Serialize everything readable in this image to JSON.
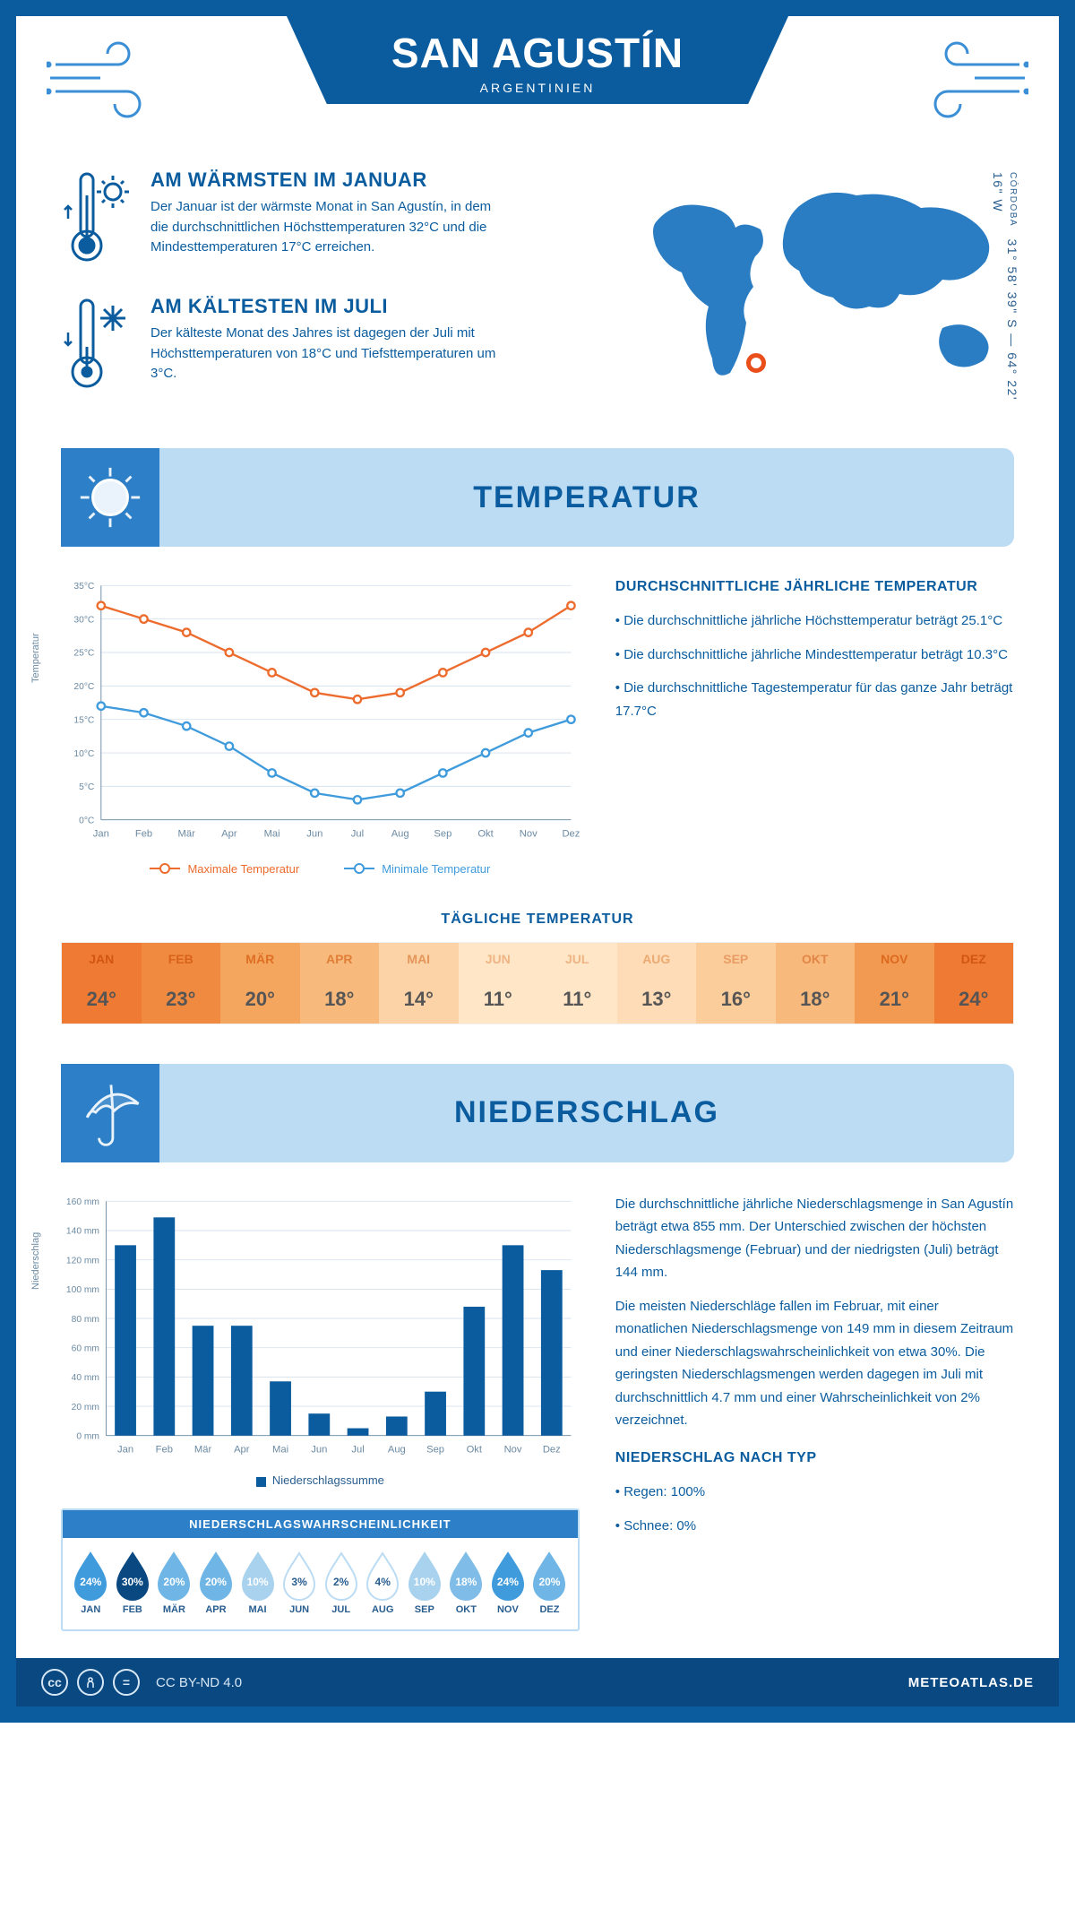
{
  "header": {
    "city": "SAN AGUSTÍN",
    "country": "ARGENTINIEN"
  },
  "location": {
    "region": "CÓRDOBA",
    "coordinates": "31° 58' 39\" S — 64° 22' 16\" W",
    "marker_color": "#e94e1b",
    "map_color": "#2b7dc3"
  },
  "facts": {
    "warm": {
      "title": "AM WÄRMSTEN IM JANUAR",
      "text": "Der Januar ist der wärmste Monat in San Agustín, in dem die durchschnittlichen Höchsttemperaturen 32°C und die Mindesttemperaturen 17°C erreichen."
    },
    "cold": {
      "title": "AM KÄLTESTEN IM JULI",
      "text": "Der kälteste Monat des Jahres ist dagegen der Juli mit Höchsttemperaturen von 18°C und Tiefsttemperaturen um 3°C."
    }
  },
  "months": [
    "Jan",
    "Feb",
    "Mär",
    "Apr",
    "Mai",
    "Jun",
    "Jul",
    "Aug",
    "Sep",
    "Okt",
    "Nov",
    "Dez"
  ],
  "months_uc": [
    "JAN",
    "FEB",
    "MÄR",
    "APR",
    "MAI",
    "JUN",
    "JUL",
    "AUG",
    "SEP",
    "OKT",
    "NOV",
    "DEZ"
  ],
  "temperature": {
    "section_title": "TEMPERATUR",
    "chart": {
      "type": "line",
      "ylabel": "Temperatur",
      "ylim": [
        0,
        35
      ],
      "ytick_step": 5,
      "ysuffix": "°C",
      "grid_color": "#d7e3ed",
      "axis_color": "#6b8aa3",
      "series": [
        {
          "name": "Maximale Temperatur",
          "color": "#ec6b2d",
          "values": [
            32,
            30,
            28,
            25,
            22,
            19,
            18,
            19,
            22,
            25,
            28,
            32
          ]
        },
        {
          "name": "Minimale Temperatur",
          "color": "#3f9bdc",
          "values": [
            17,
            16,
            14,
            11,
            7,
            4,
            3,
            4,
            7,
            10,
            13,
            15
          ]
        }
      ]
    },
    "annual": {
      "title": "DURCHSCHNITTLICHE JÄHRLICHE TEMPERATUR",
      "bullets": [
        "• Die durchschnittliche jährliche Höchsttemperatur beträgt 25.1°C",
        "• Die durchschnittliche jährliche Mindesttemperatur beträgt 10.3°C",
        "• Die durchschnittliche Tagestemperatur für das ganze Jahr beträgt 17.7°C"
      ]
    },
    "daily": {
      "title": "TÄGLICHE TEMPERATUR",
      "values": [
        24,
        23,
        20,
        18,
        14,
        11,
        11,
        13,
        16,
        18,
        21,
        24
      ],
      "heat_colors": [
        "#ee7a33",
        "#f08a40",
        "#f4a55e",
        "#f8b97c",
        "#fcd3a6",
        "#ffe6c7",
        "#ffe6c7",
        "#fedcb7",
        "#fbcd9b",
        "#f8b97c",
        "#f39a52",
        "#ee7a33"
      ],
      "label_colors": [
        "#d25612",
        "#d86219",
        "#de6f25",
        "#e07f38",
        "#e4955a",
        "#efb483",
        "#efb483",
        "#ecaa73",
        "#e89c63",
        "#e28647",
        "#dc6a1e",
        "#d25612"
      ]
    }
  },
  "precip": {
    "section_title": "NIEDERSCHLAG",
    "chart": {
      "type": "bar",
      "ylabel": "Niederschlag",
      "ylim": [
        0,
        160
      ],
      "ytick_step": 20,
      "ysuffix": " mm",
      "bar_color": "#0a5c9e",
      "grid_color": "#d7e3ed",
      "axis_color": "#6b8aa3",
      "values": [
        130,
        149,
        75,
        75,
        37,
        15,
        5,
        13,
        30,
        88,
        130,
        113
      ],
      "legend": "Niederschlagssumme"
    },
    "text1": "Die durchschnittliche jährliche Niederschlagsmenge in San Agustín beträgt etwa 855 mm. Der Unterschied zwischen der höchsten Niederschlagsmenge (Februar) und der niedrigsten (Juli) beträgt 144 mm.",
    "text2": "Die meisten Niederschläge fallen im Februar, mit einer monatlichen Niederschlagsmenge von 149 mm in diesem Zeitraum und einer Niederschlagswahrscheinlichkeit von etwa 30%. Die geringsten Niederschlagsmengen werden dagegen im Juli mit durchschnittlich 4.7 mm und einer Wahrscheinlichkeit von 2% verzeichnet.",
    "bytype_title": "NIEDERSCHLAG NACH TYP",
    "bytype": [
      "• Regen: 100%",
      "• Schnee: 0%"
    ],
    "prob": {
      "title": "NIEDERSCHLAGSWAHRSCHEINLICHKEIT",
      "values": [
        24,
        30,
        20,
        20,
        10,
        3,
        2,
        4,
        10,
        18,
        24,
        20
      ],
      "fill_colors": [
        "#3f9bdc",
        "#0a4882",
        "#6fb6e6",
        "#6fb6e6",
        "#a8d2ee",
        "#ffffff",
        "#ffffff",
        "#ffffff",
        "#a8d2ee",
        "#7fbde8",
        "#3f9bdc",
        "#6fb6e6"
      ],
      "text_colors": [
        "#ffffff",
        "#ffffff",
        "#ffffff",
        "#ffffff",
        "#ffffff",
        "#285d8f",
        "#285d8f",
        "#285d8f",
        "#ffffff",
        "#ffffff",
        "#ffffff",
        "#ffffff"
      ]
    }
  },
  "footer": {
    "license": "CC BY-ND 4.0",
    "site": "METEOATLAS.DE"
  },
  "colors": {
    "primary": "#0a5c9e",
    "banner": "#bcdcf4",
    "dark": "#0a4882",
    "accent": "#2d80c7"
  }
}
